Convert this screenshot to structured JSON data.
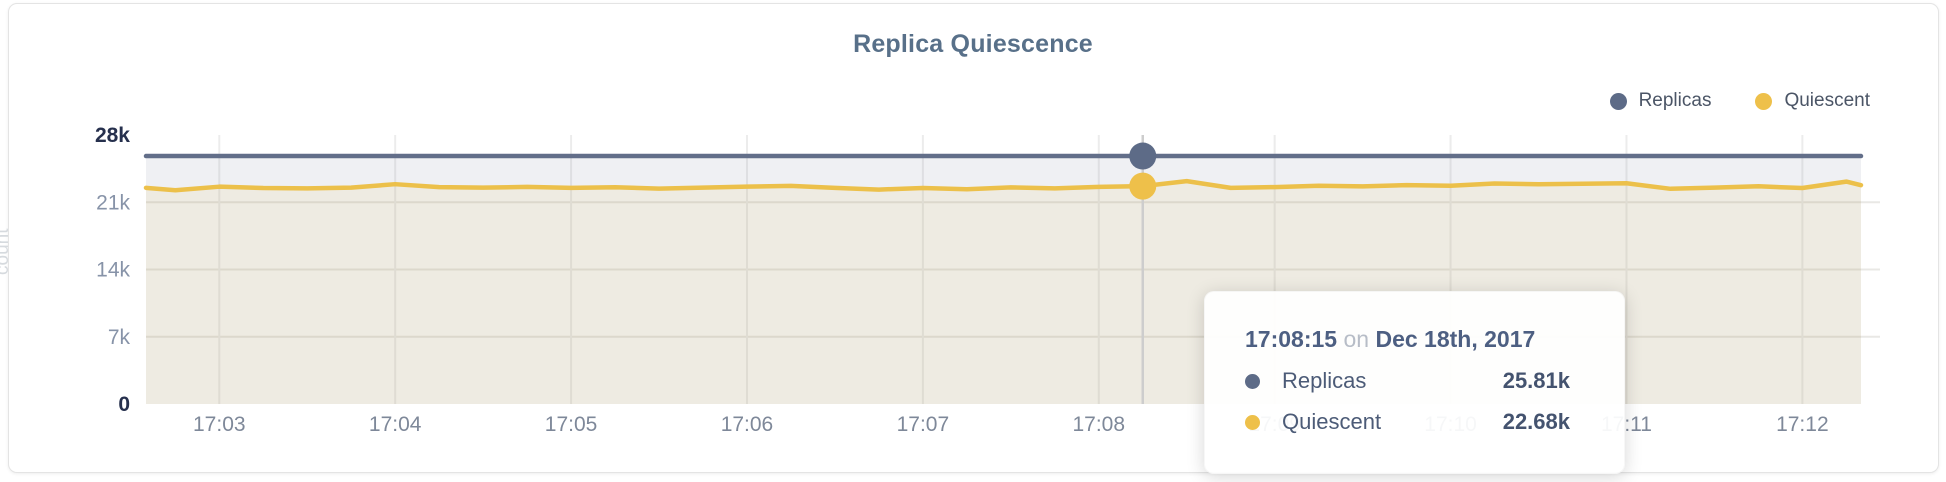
{
  "header": {
    "title": "Replica Quiescence"
  },
  "legend": {
    "items": [
      {
        "label": "Replicas",
        "color": "#5d6b87"
      },
      {
        "label": "Quiescent",
        "color": "#eec04a"
      }
    ]
  },
  "y_axis": {
    "title": "count",
    "ticks": [
      {
        "label": "28k",
        "value": 28000,
        "emphasis": true
      },
      {
        "label": "21k",
        "value": 21000,
        "emphasis": false
      },
      {
        "label": "14k",
        "value": 14000,
        "emphasis": false
      },
      {
        "label": "7k",
        "value": 7000,
        "emphasis": false
      },
      {
        "label": "0",
        "value": 0,
        "emphasis": true
      }
    ]
  },
  "x_axis": {
    "ticks": [
      "17:03",
      "17:04",
      "17:05",
      "17:06",
      "17:07",
      "17:08",
      "17:09",
      "17:10",
      "17:11",
      "17:12"
    ]
  },
  "tooltip": {
    "time": "17:08:15",
    "connector": "on",
    "date": "Dec 18th, 2017",
    "rows": [
      {
        "label": "Replicas",
        "value": "25.81k",
        "color": "#5d6b87"
      },
      {
        "label": "Quiescent",
        "value": "22.68k",
        "color": "#eec04a"
      }
    ]
  },
  "hover": {
    "time": "17:08:15"
  },
  "chart_data": {
    "type": "area",
    "title": "Replica Quiescence",
    "xlabel": "",
    "ylabel": "count",
    "ylim": [
      0,
      28000
    ],
    "grid": true,
    "legend_position": "top-right",
    "x_start": "17:02:35",
    "x_end": "17:12:20",
    "x": [
      "17:02:35",
      "17:02:45",
      "17:03:00",
      "17:03:15",
      "17:03:30",
      "17:03:45",
      "17:04:00",
      "17:04:15",
      "17:04:30",
      "17:04:45",
      "17:05:00",
      "17:05:15",
      "17:05:30",
      "17:05:45",
      "17:06:00",
      "17:06:15",
      "17:06:30",
      "17:06:45",
      "17:07:00",
      "17:07:15",
      "17:07:30",
      "17:07:45",
      "17:08:00",
      "17:08:15",
      "17:08:30",
      "17:08:45",
      "17:09:00",
      "17:09:15",
      "17:09:30",
      "17:09:45",
      "17:10:00",
      "17:10:15",
      "17:10:30",
      "17:10:45",
      "17:11:00",
      "17:11:15",
      "17:11:30",
      "17:11:45",
      "17:12:00",
      "17:12:15",
      "17:12:20"
    ],
    "series": [
      {
        "name": "Replicas",
        "line_color": "#626e89",
        "fill_color": "rgba(99,110,136,0.10)",
        "values": [
          25810,
          25810,
          25810,
          25810,
          25810,
          25810,
          25810,
          25810,
          25810,
          25810,
          25810,
          25810,
          25810,
          25810,
          25810,
          25810,
          25810,
          25810,
          25810,
          25810,
          25810,
          25810,
          25810,
          25810,
          25810,
          25810,
          25810,
          25810,
          25810,
          25810,
          25810,
          25810,
          25810,
          25810,
          25810,
          25810,
          25810,
          25810,
          25810,
          25810,
          25810
        ]
      },
      {
        "name": "Quiescent",
        "line_color": "#ecc04a",
        "fill_color": "rgba(236,192,74,0.10)",
        "values": [
          22500,
          22250,
          22620,
          22480,
          22450,
          22520,
          22880,
          22580,
          22520,
          22600,
          22500,
          22560,
          22420,
          22520,
          22620,
          22700,
          22500,
          22320,
          22480,
          22350,
          22550,
          22450,
          22600,
          22680,
          23200,
          22500,
          22580,
          22720,
          22650,
          22780,
          22720,
          22950,
          22880,
          22920,
          22980,
          22400,
          22520,
          22660,
          22480,
          23150,
          22780
        ]
      }
    ],
    "hover_point": {
      "time": "17:08:15",
      "replicas": 25810,
      "quiescent": 22680
    }
  }
}
